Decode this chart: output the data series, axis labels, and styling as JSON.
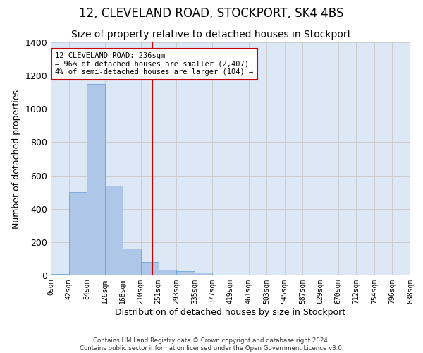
{
  "title": "12, CLEVELAND ROAD, STOCKPORT, SK4 4BS",
  "subtitle": "Size of property relative to detached houses in Stockport",
  "xlabel": "Distribution of detached houses by size in Stockport",
  "ylabel": "Number of detached properties",
  "bar_edges": [
    0,
    42,
    84,
    126,
    168,
    210,
    251,
    293,
    335,
    377,
    419,
    461,
    503,
    545,
    587,
    629,
    670,
    712,
    754,
    796,
    838
  ],
  "bar_heights": [
    10,
    500,
    1150,
    540,
    160,
    80,
    35,
    25,
    15,
    5,
    0,
    0,
    0,
    0,
    0,
    0,
    0,
    0,
    0,
    0
  ],
  "bar_color": "#aec6e8",
  "bar_edge_color": "#5a9fd4",
  "vline_x": 236,
  "vline_color": "#cc0000",
  "annotation_line1": "12 CLEVELAND ROAD: 236sqm",
  "annotation_line2": "← 96% of detached houses are smaller (2,407)",
  "annotation_line3": "4% of semi-detached houses are larger (104) →",
  "annotation_box_color": "#cc0000",
  "ylim": [
    0,
    1400
  ],
  "yticks": [
    0,
    200,
    400,
    600,
    800,
    1000,
    1200,
    1400
  ],
  "grid_color": "#cccccc",
  "bg_color": "#dce8f5",
  "footer_text": "Contains HM Land Registry data © Crown copyright and database right 2024.\nContains public sector information licensed under the Open Government Licence v3.0.",
  "title_fontsize": 12,
  "subtitle_fontsize": 10,
  "tick_labels": [
    "0sqm",
    "42sqm",
    "84sqm",
    "126sqm",
    "168sqm",
    "210sqm",
    "251sqm",
    "293sqm",
    "335sqm",
    "377sqm",
    "419sqm",
    "461sqm",
    "503sqm",
    "545sqm",
    "587sqm",
    "629sqm",
    "670sqm",
    "712sqm",
    "754sqm",
    "796sqm",
    "838sqm"
  ]
}
